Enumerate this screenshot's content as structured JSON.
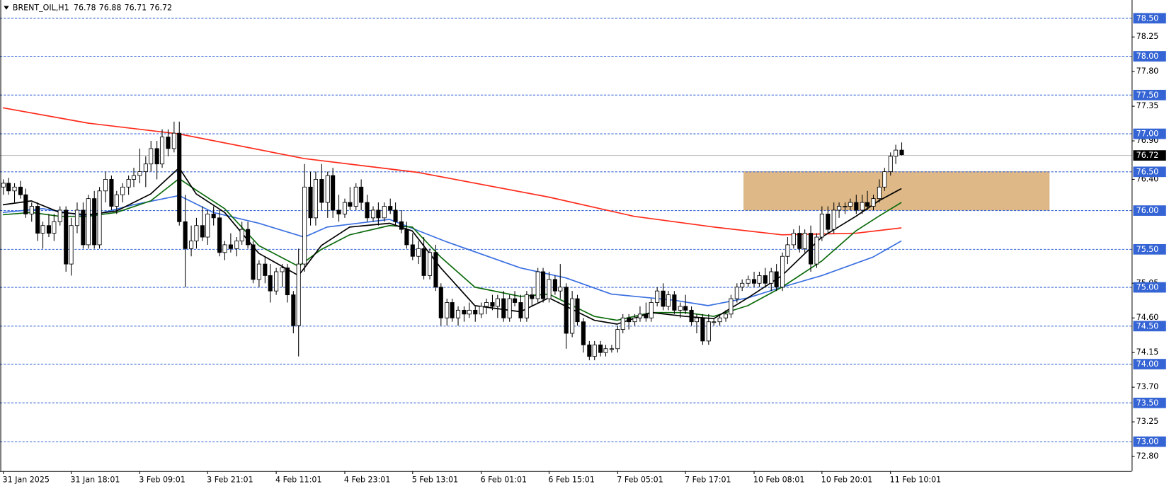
{
  "chart_data": {
    "type": "candlestick",
    "symbol": "BRENT_OIL,H1",
    "header_values": [
      76.78,
      76.88,
      76.71,
      76.72
    ],
    "ohlc": [
      [
        76.3,
        76.4,
        76.2,
        76.35
      ],
      [
        76.35,
        76.42,
        76.2,
        76.25
      ],
      [
        76.25,
        76.35,
        76.1,
        76.3
      ],
      [
        76.3,
        76.38,
        76.15,
        76.2
      ],
      [
        76.2,
        76.28,
        75.9,
        75.95
      ],
      [
        75.95,
        76.1,
        75.85,
        76.05
      ],
      [
        76.05,
        76.1,
        75.6,
        75.7
      ],
      [
        75.7,
        75.85,
        75.5,
        75.8
      ],
      [
        75.8,
        75.95,
        75.65,
        75.7
      ],
      [
        75.7,
        75.95,
        75.6,
        75.85
      ],
      [
        75.85,
        76.05,
        75.8,
        76.0
      ],
      [
        76.0,
        76.05,
        75.2,
        75.3
      ],
      [
        75.3,
        75.9,
        75.15,
        75.8
      ],
      [
        75.8,
        76.1,
        75.7,
        76.0
      ],
      [
        76.0,
        76.1,
        75.5,
        75.55
      ],
      [
        75.55,
        76.2,
        75.5,
        76.15
      ],
      [
        76.15,
        76.25,
        75.5,
        75.55
      ],
      [
        75.55,
        76.3,
        75.5,
        76.25
      ],
      [
        76.25,
        76.5,
        76.1,
        76.4
      ],
      [
        76.4,
        76.45,
        76.0,
        76.05
      ],
      [
        76.05,
        76.25,
        75.95,
        76.2
      ],
      [
        76.2,
        76.35,
        76.1,
        76.3
      ],
      [
        76.3,
        76.45,
        76.2,
        76.4
      ],
      [
        76.4,
        76.55,
        76.3,
        76.45
      ],
      [
        76.45,
        76.8,
        76.35,
        76.5
      ],
      [
        76.5,
        76.7,
        76.3,
        76.6
      ],
      [
        76.6,
        76.9,
        76.5,
        76.8
      ],
      [
        76.8,
        76.9,
        76.4,
        76.6
      ],
      [
        76.6,
        77.05,
        76.55,
        76.95
      ],
      [
        76.95,
        77.05,
        76.7,
        76.8
      ],
      [
        76.8,
        77.15,
        76.75,
        77.0
      ],
      [
        77.0,
        77.15,
        75.8,
        75.85
      ],
      [
        75.85,
        76.2,
        75.0,
        75.5
      ],
      [
        75.5,
        75.8,
        75.4,
        75.6
      ],
      [
        75.6,
        75.9,
        75.5,
        75.8
      ],
      [
        75.8,
        76.05,
        75.6,
        75.65
      ],
      [
        75.65,
        76.0,
        75.55,
        75.95
      ],
      [
        75.95,
        76.05,
        75.8,
        75.9
      ],
      [
        75.9,
        76.0,
        75.4,
        75.45
      ],
      [
        75.45,
        75.6,
        75.35,
        75.55
      ],
      [
        75.55,
        75.7,
        75.45,
        75.5
      ],
      [
        75.5,
        75.65,
        75.4,
        75.6
      ],
      [
        75.6,
        75.85,
        75.55,
        75.75
      ],
      [
        75.75,
        75.85,
        75.5,
        75.55
      ],
      [
        75.55,
        75.6,
        75.05,
        75.1
      ],
      [
        75.1,
        75.35,
        75.0,
        75.3
      ],
      [
        75.3,
        75.4,
        75.05,
        75.15
      ],
      [
        75.15,
        75.3,
        74.8,
        74.95
      ],
      [
        74.95,
        75.25,
        74.9,
        75.2
      ],
      [
        75.2,
        75.3,
        75.0,
        75.25
      ],
      [
        75.25,
        75.3,
        74.8,
        74.9
      ],
      [
        74.9,
        74.95,
        74.4,
        74.5
      ],
      [
        74.5,
        75.5,
        74.1,
        75.3
      ],
      [
        75.3,
        76.6,
        75.2,
        76.3
      ],
      [
        76.3,
        76.5,
        75.8,
        75.9
      ],
      [
        75.9,
        76.5,
        75.8,
        76.4
      ],
      [
        76.4,
        76.6,
        76.0,
        76.1
      ],
      [
        76.1,
        76.5,
        75.9,
        76.45
      ],
      [
        76.45,
        76.55,
        75.9,
        76.0
      ],
      [
        76.0,
        76.2,
        75.85,
        75.95
      ],
      [
        75.95,
        76.15,
        75.9,
        76.1
      ],
      [
        76.1,
        76.3,
        76.0,
        76.05
      ],
      [
        76.05,
        76.35,
        76.0,
        76.3
      ],
      [
        76.3,
        76.4,
        76.0,
        76.1
      ],
      [
        76.1,
        76.2,
        75.85,
        75.9
      ],
      [
        75.9,
        76.05,
        75.85,
        76.0
      ],
      [
        76.0,
        76.1,
        75.8,
        75.9
      ],
      [
        75.9,
        76.1,
        75.85,
        76.05
      ],
      [
        76.05,
        76.15,
        75.95,
        76.0
      ],
      [
        76.0,
        76.1,
        75.8,
        75.85
      ],
      [
        75.85,
        76.0,
        75.7,
        75.75
      ],
      [
        75.75,
        75.85,
        75.5,
        75.55
      ],
      [
        75.55,
        75.7,
        75.35,
        75.4
      ],
      [
        75.4,
        75.6,
        75.3,
        75.5
      ],
      [
        75.5,
        75.65,
        75.1,
        75.15
      ],
      [
        75.15,
        75.5,
        75.1,
        75.45
      ],
      [
        75.45,
        75.55,
        74.95,
        75.0
      ],
      [
        75.0,
        75.05,
        74.5,
        74.6
      ],
      [
        74.6,
        74.85,
        74.5,
        74.8
      ],
      [
        74.8,
        74.85,
        74.55,
        74.6
      ],
      [
        74.6,
        74.75,
        74.5,
        74.7
      ],
      [
        74.7,
        74.75,
        74.55,
        74.65
      ],
      [
        74.65,
        74.8,
        74.6,
        74.7
      ],
      [
        74.7,
        74.75,
        74.55,
        74.65
      ],
      [
        74.65,
        74.8,
        74.6,
        74.75
      ],
      [
        74.75,
        74.85,
        74.65,
        74.8
      ],
      [
        74.8,
        74.9,
        74.7,
        74.75
      ],
      [
        74.75,
        74.9,
        74.6,
        74.85
      ],
      [
        74.85,
        74.95,
        74.55,
        74.6
      ],
      [
        74.6,
        74.9,
        74.55,
        74.85
      ],
      [
        74.85,
        74.95,
        74.75,
        74.8
      ],
      [
        74.8,
        74.9,
        74.55,
        74.6
      ],
      [
        74.6,
        74.95,
        74.55,
        74.9
      ],
      [
        74.9,
        75.0,
        74.75,
        74.85
      ],
      [
        74.85,
        75.25,
        74.8,
        75.2
      ],
      [
        75.2,
        75.25,
        74.8,
        74.85
      ],
      [
        74.85,
        75.2,
        74.8,
        75.1
      ],
      [
        75.1,
        75.15,
        74.9,
        74.95
      ],
      [
        74.95,
        75.3,
        74.85,
        75.0
      ],
      [
        75.0,
        75.05,
        74.2,
        74.4
      ],
      [
        74.4,
        74.95,
        74.35,
        74.85
      ],
      [
        74.85,
        74.9,
        74.5,
        74.55
      ],
      [
        74.55,
        74.6,
        74.15,
        74.25
      ],
      [
        74.25,
        74.3,
        74.05,
        74.1
      ],
      [
        74.1,
        74.3,
        74.05,
        74.25
      ],
      [
        74.25,
        74.3,
        74.1,
        74.15
      ],
      [
        74.15,
        74.25,
        74.1,
        74.2
      ],
      [
        74.2,
        74.25,
        74.15,
        74.2
      ],
      [
        74.2,
        74.5,
        74.15,
        74.45
      ],
      [
        74.45,
        74.65,
        74.4,
        74.6
      ],
      [
        74.6,
        74.65,
        74.45,
        74.55
      ],
      [
        74.55,
        74.65,
        74.5,
        74.6
      ],
      [
        74.6,
        74.75,
        74.55,
        74.65
      ],
      [
        74.65,
        74.8,
        74.55,
        74.6
      ],
      [
        74.6,
        74.85,
        74.55,
        74.8
      ],
      [
        74.8,
        75.0,
        74.75,
        74.95
      ],
      [
        74.95,
        75.05,
        74.7,
        74.75
      ],
      [
        74.75,
        74.95,
        74.7,
        74.9
      ],
      [
        74.9,
        74.95,
        74.65,
        74.7
      ],
      [
        74.7,
        74.8,
        74.6,
        74.75
      ],
      [
        74.75,
        74.9,
        74.65,
        74.7
      ],
      [
        74.7,
        74.75,
        74.5,
        74.55
      ],
      [
        74.55,
        74.65,
        74.4,
        74.6
      ],
      [
        74.6,
        74.65,
        74.25,
        74.3
      ],
      [
        74.3,
        74.65,
        74.25,
        74.55
      ],
      [
        74.55,
        74.6,
        74.5,
        74.55
      ],
      [
        74.55,
        74.65,
        74.5,
        74.6
      ],
      [
        74.6,
        74.7,
        74.55,
        74.65
      ],
      [
        74.65,
        74.9,
        74.6,
        74.85
      ],
      [
        74.85,
        75.05,
        74.8,
        75.0
      ],
      [
        75.0,
        75.1,
        74.95,
        75.05
      ],
      [
        75.05,
        75.15,
        75.0,
        75.1
      ],
      [
        75.1,
        75.2,
        75.0,
        75.05
      ],
      [
        75.05,
        75.2,
        75.0,
        75.15
      ],
      [
        75.15,
        75.25,
        75.0,
        75.05
      ],
      [
        75.05,
        75.25,
        74.95,
        75.2
      ],
      [
        75.2,
        75.3,
        74.95,
        75.0
      ],
      [
        75.0,
        75.45,
        74.95,
        75.4
      ],
      [
        75.4,
        75.65,
        75.3,
        75.55
      ],
      [
        75.55,
        75.75,
        75.5,
        75.7
      ],
      [
        75.7,
        75.8,
        75.45,
        75.5
      ],
      [
        75.5,
        75.75,
        75.45,
        75.7
      ],
      [
        75.7,
        75.8,
        75.2,
        75.3
      ],
      [
        75.3,
        75.7,
        75.25,
        75.65
      ],
      [
        75.65,
        76.05,
        75.6,
        75.95
      ],
      [
        75.95,
        76.05,
        75.7,
        75.75
      ],
      [
        75.75,
        76.1,
        75.7,
        76.0
      ],
      [
        76.0,
        76.1,
        75.9,
        76.05
      ],
      [
        76.05,
        76.1,
        75.95,
        76.05
      ],
      [
        76.05,
        76.15,
        76.0,
        76.1
      ],
      [
        76.1,
        76.2,
        75.95,
        76.0
      ],
      [
        76.0,
        76.2,
        75.95,
        76.1
      ],
      [
        76.1,
        76.25,
        76.0,
        76.05
      ],
      [
        76.05,
        76.2,
        76.0,
        76.15
      ],
      [
        76.15,
        76.4,
        76.1,
        76.3
      ],
      [
        76.3,
        76.55,
        76.25,
        76.5
      ],
      [
        76.5,
        76.75,
        76.45,
        76.7
      ],
      [
        76.7,
        76.85,
        76.6,
        76.78
      ],
      [
        76.78,
        76.88,
        76.71,
        76.72
      ]
    ],
    "bull_color": "#ffffff",
    "bear_color": "#000000",
    "wick_color": "#000000",
    "xlim": [
      -0.5,
      198.5
    ],
    "ylim": [
      72.61,
      78.73
    ],
    "xticks": [
      {
        "value": 0,
        "label": "31 Jan 2025"
      },
      {
        "value": 12,
        "label": "31 Jan 18:01"
      },
      {
        "value": 24,
        "label": "3 Feb 09:01"
      },
      {
        "value": 36,
        "label": "3 Feb 21:01"
      },
      {
        "value": 48,
        "label": "4 Feb 11:01"
      },
      {
        "value": 60,
        "label": "4 Feb 23:01"
      },
      {
        "value": 72,
        "label": "5 Feb 13:01"
      },
      {
        "value": 84,
        "label": "6 Feb 01:01"
      },
      {
        "value": 96,
        "label": "6 Feb 15:01"
      },
      {
        "value": 108,
        "label": "7 Feb 05:01"
      },
      {
        "value": 120,
        "label": "7 Feb 17:01"
      },
      {
        "value": 132,
        "label": "10 Feb 08:01"
      },
      {
        "value": 144,
        "label": "10 Feb 20:01"
      },
      {
        "value": 156,
        "label": "11 Feb 10:01"
      }
    ],
    "yticks": [
      78.25,
      {
        "value": 77.8,
        "label": "77.80"
      },
      77.35,
      {
        "value": 76.9,
        "label": "76.90"
      },
      {
        "value": 76.4,
        "label": "76.40"
      },
      75.05,
      {
        "value": 74.6,
        "label": "74.60"
      },
      74.15,
      {
        "value": 73.7,
        "label": "73.70"
      },
      73.25,
      {
        "value": 72.8,
        "label": "72.80"
      }
    ],
    "levels": [
      {
        "value": 78.5,
        "label": "78.50"
      },
      {
        "value": 78.0,
        "label": "78.00"
      },
      {
        "value": 77.5,
        "label": "77.50"
      },
      {
        "value": 77.0,
        "label": "77.00"
      },
      {
        "value": 76.5,
        "label": "76.50"
      },
      {
        "value": 76.0,
        "label": "76.00"
      },
      {
        "value": 75.5,
        "label": "75.50"
      },
      {
        "value": 75.0,
        "label": "75.00"
      },
      {
        "value": 74.5,
        "label": "74.50"
      },
      {
        "value": 74.0,
        "label": "74.00"
      },
      {
        "value": 73.5,
        "label": "73.50"
      },
      {
        "value": 73.0,
        "label": "73.00"
      }
    ],
    "level_color": "#3564d4",
    "current_price": 76.72,
    "current_color": "#000000",
    "current_line_color": "#b4b4b4",
    "zone": {
      "x": [
        130.3,
        184
      ],
      "y": [
        76.0,
        76.5
      ],
      "color": "#deb887"
    },
    "series": [
      {
        "color": "#ff2a1a",
        "x": [
          0,
          15,
          31,
          53,
          73,
          96,
          111,
          125,
          137,
          150,
          158
        ],
        "values": [
          77.33,
          77.13,
          76.99,
          76.67,
          76.49,
          76.17,
          75.92,
          75.78,
          75.68,
          75.7,
          75.77
        ]
      },
      {
        "color": "#3a6fe0",
        "x": [
          0,
          7,
          15,
          23,
          31,
          37,
          45,
          53,
          57,
          68,
          78,
          91,
          99,
          107,
          118,
          124,
          131,
          137,
          144,
          153,
          158
        ],
        "values": [
          75.97,
          76.02,
          75.92,
          76.07,
          76.19,
          75.97,
          75.83,
          75.65,
          75.78,
          75.88,
          75.59,
          75.25,
          75.12,
          74.91,
          74.83,
          74.76,
          74.86,
          75.0,
          75.15,
          75.39,
          75.6
        ]
      },
      {
        "color": "#0b6a0b",
        "x": [
          0,
          5,
          10,
          15,
          20,
          26,
          31,
          34,
          39,
          45,
          52,
          56,
          61,
          68,
          72,
          77,
          83,
          91,
          96,
          104,
          108,
          114,
          120,
          125,
          131,
          137,
          144,
          150,
          154,
          158
        ],
        "values": [
          75.94,
          75.97,
          75.92,
          75.92,
          75.97,
          76.12,
          76.41,
          76.26,
          76.02,
          75.54,
          75.27,
          75.49,
          75.68,
          75.8,
          75.78,
          75.39,
          75.0,
          74.88,
          74.91,
          74.62,
          74.57,
          74.67,
          74.67,
          74.62,
          74.76,
          75.0,
          75.34,
          75.73,
          75.92,
          76.1
        ]
      },
      {
        "color": "#000000",
        "x": [
          0,
          5,
          10,
          15,
          20,
          26,
          31,
          34,
          39,
          45,
          52,
          56,
          61,
          68,
          72,
          77,
          83,
          91,
          96,
          104,
          108,
          114,
          120,
          125,
          131,
          137,
          144,
          150,
          154,
          158
        ],
        "values": [
          76.07,
          76.12,
          75.97,
          75.94,
          75.99,
          76.21,
          76.55,
          76.21,
          75.97,
          75.44,
          75.15,
          75.54,
          75.78,
          75.83,
          75.73,
          75.25,
          74.76,
          74.68,
          74.86,
          74.57,
          74.52,
          74.67,
          74.62,
          74.59,
          74.86,
          75.15,
          75.65,
          75.92,
          76.12,
          76.28
        ]
      }
    ]
  }
}
